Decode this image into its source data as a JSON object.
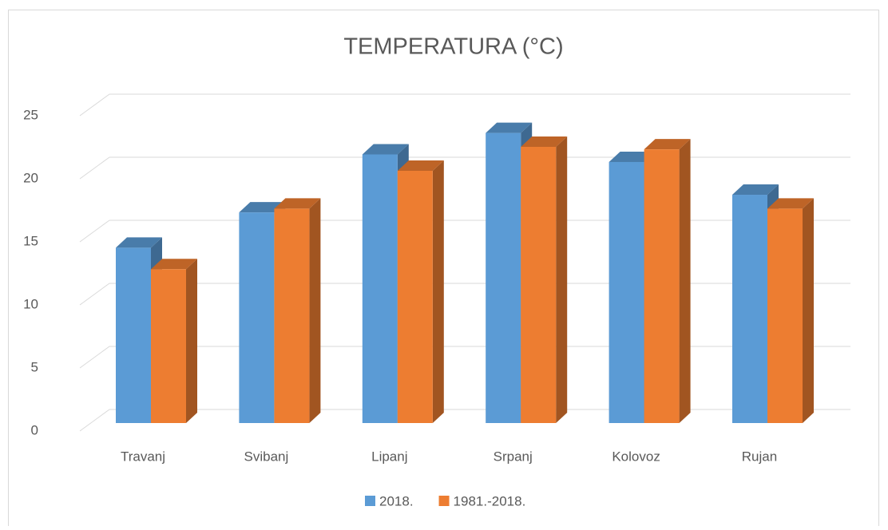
{
  "chart_data": {
    "type": "bar3d",
    "title": "TEMPERATURA  (°C)",
    "categories": [
      "Travanj",
      "Svibanj",
      "Lipanj",
      "Srpanj",
      "Kolovoz",
      "Rujan"
    ],
    "series": [
      {
        "name": "2018.",
        "color": "#5b9bd5",
        "values": [
          13.9,
          16.7,
          21.3,
          23.0,
          20.7,
          18.1
        ]
      },
      {
        "name": "1981.-2018.",
        "color": "#ed7d31",
        "values": [
          12.2,
          17.0,
          20.0,
          21.9,
          21.7,
          17.0
        ]
      }
    ],
    "ylim": [
      0,
      25
    ],
    "yticks": [
      0,
      5,
      10,
      15,
      20,
      25
    ],
    "grid": true,
    "legend": "bottom"
  }
}
